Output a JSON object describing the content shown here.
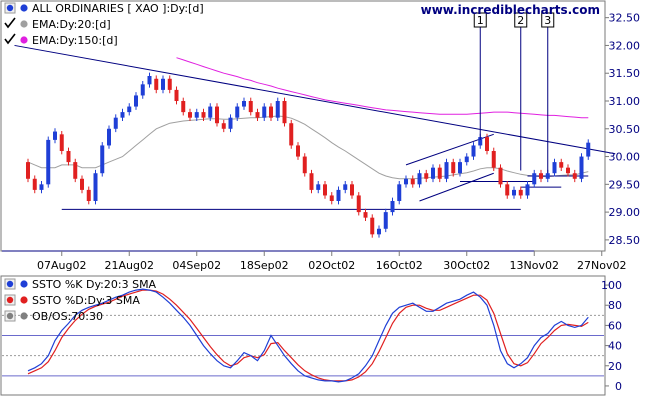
{
  "chart_data": [
    {
      "type": "candlestick",
      "legend": [
        {
          "label": "ALL ORDINARIES [ XAO ]:Dy:[d]",
          "color": "#1f3fd6",
          "marker": "dot"
        },
        {
          "label": "EMA:Dy:20:[d]",
          "color": "#a0a0a0",
          "marker": "check"
        },
        {
          "label": "EMA:Dy:150:[d]",
          "color": "#e020e0",
          "marker": "check"
        }
      ],
      "site": "www.incrediblecharts.com",
      "x_ticks": [
        "07Aug02",
        "21Aug02",
        "04Sep02",
        "18Sep02",
        "02Oct02",
        "16Oct02",
        "30Oct02",
        "13Nov02",
        "27Nov02"
      ],
      "y_ticks": [
        "28.50",
        "29.00",
        "29.50",
        "30.00",
        "30.50",
        "31.00",
        "31.50",
        "32.00",
        "32.50"
      ],
      "ylim": [
        28.3,
        32.8
      ],
      "up_color": "#1f3fd6",
      "down_color": "#e02020",
      "candles": [
        [
          29.9,
          29.6
        ],
        [
          29.6,
          29.4
        ],
        [
          29.4,
          29.5
        ],
        [
          29.5,
          30.3
        ],
        [
          30.3,
          30.45
        ],
        [
          30.4,
          30.1
        ],
        [
          30.1,
          29.9
        ],
        [
          29.9,
          29.6
        ],
        [
          29.6,
          29.4
        ],
        [
          29.4,
          29.2
        ],
        [
          29.2,
          29.7
        ],
        [
          29.7,
          30.2
        ],
        [
          30.2,
          30.5
        ],
        [
          30.5,
          30.7
        ],
        [
          30.7,
          30.8
        ],
        [
          30.8,
          30.9
        ],
        [
          30.9,
          31.1
        ],
        [
          31.1,
          31.3
        ],
        [
          31.3,
          31.45
        ],
        [
          31.4,
          31.2
        ],
        [
          31.2,
          31.4
        ],
        [
          31.4,
          31.2
        ],
        [
          31.2,
          31.0
        ],
        [
          31.0,
          30.8
        ],
        [
          30.8,
          30.7
        ],
        [
          30.7,
          30.8
        ],
        [
          30.8,
          30.7
        ],
        [
          30.7,
          30.9
        ],
        [
          30.9,
          30.6
        ],
        [
          30.6,
          30.5
        ],
        [
          30.5,
          30.7
        ],
        [
          30.7,
          30.9
        ],
        [
          30.9,
          31.0
        ],
        [
          31.0,
          30.8
        ],
        [
          30.8,
          30.7
        ],
        [
          30.7,
          30.9
        ],
        [
          30.9,
          30.7
        ],
        [
          30.7,
          31.0
        ],
        [
          31.0,
          30.6
        ],
        [
          30.6,
          30.2
        ],
        [
          30.2,
          30.0
        ],
        [
          30.0,
          29.7
        ],
        [
          29.7,
          29.4
        ],
        [
          29.4,
          29.5
        ],
        [
          29.5,
          29.3
        ],
        [
          29.3,
          29.2
        ],
        [
          29.2,
          29.4
        ],
        [
          29.4,
          29.5
        ],
        [
          29.5,
          29.3
        ],
        [
          29.3,
          29.0
        ],
        [
          29.0,
          28.9
        ],
        [
          28.9,
          28.6
        ],
        [
          28.6,
          28.7
        ],
        [
          28.7,
          29.0
        ],
        [
          29.0,
          29.2
        ],
        [
          29.2,
          29.5
        ],
        [
          29.5,
          29.6
        ],
        [
          29.6,
          29.5
        ],
        [
          29.5,
          29.7
        ],
        [
          29.7,
          29.6
        ],
        [
          29.6,
          29.8
        ],
        [
          29.8,
          29.6
        ],
        [
          29.6,
          29.9
        ],
        [
          29.9,
          29.7
        ],
        [
          29.7,
          29.9
        ],
        [
          29.9,
          30.0
        ],
        [
          30.0,
          30.2
        ],
        [
          30.2,
          30.35
        ],
        [
          30.35,
          30.1
        ],
        [
          30.1,
          29.8
        ],
        [
          29.8,
          29.5
        ],
        [
          29.5,
          29.3
        ],
        [
          29.3,
          29.4
        ],
        [
          29.4,
          29.3
        ],
        [
          29.3,
          29.5
        ],
        [
          29.5,
          29.7
        ],
        [
          29.7,
          29.6
        ],
        [
          29.6,
          29.7
        ],
        [
          29.7,
          29.9
        ],
        [
          29.9,
          29.8
        ],
        [
          29.8,
          29.7
        ],
        [
          29.7,
          29.6
        ],
        [
          29.6,
          30.0
        ],
        [
          30.0,
          30.25
        ]
      ],
      "ema20": [
        29.9,
        29.85,
        29.8,
        29.8,
        29.8,
        29.85,
        29.85,
        29.85,
        29.8,
        29.8,
        29.8,
        29.85,
        29.9,
        29.95,
        30.0,
        30.1,
        30.2,
        30.3,
        30.4,
        30.5,
        30.55,
        30.6,
        30.62,
        30.64,
        30.65,
        30.66,
        30.67,
        30.68,
        30.68,
        30.67,
        30.67,
        30.68,
        30.69,
        30.7,
        30.7,
        30.71,
        30.72,
        30.73,
        30.72,
        30.69,
        30.64,
        30.58,
        30.5,
        30.42,
        30.34,
        30.25,
        30.17,
        30.1,
        30.02,
        29.94,
        29.86,
        29.78,
        29.7,
        29.65,
        29.62,
        29.6,
        29.6,
        29.6,
        29.61,
        29.62,
        29.63,
        29.64,
        29.65,
        29.67,
        29.69,
        29.71,
        29.74,
        29.78,
        29.8,
        29.8,
        29.78,
        29.74,
        29.71,
        29.68,
        29.66,
        29.65,
        29.64,
        29.64,
        29.65,
        29.66,
        29.67,
        29.67,
        29.7,
        29.73
      ],
      "ema150": [
        null,
        null,
        null,
        null,
        null,
        null,
        null,
        null,
        null,
        null,
        null,
        null,
        null,
        null,
        null,
        null,
        null,
        null,
        null,
        null,
        null,
        null,
        31.78,
        31.74,
        31.7,
        31.66,
        31.62,
        31.58,
        31.54,
        31.5,
        31.47,
        31.44,
        31.4,
        31.37,
        31.33,
        31.3,
        31.27,
        31.23,
        31.2,
        31.17,
        31.14,
        31.11,
        31.08,
        31.05,
        31.02,
        31.0,
        30.98,
        30.96,
        30.94,
        30.92,
        30.9,
        30.88,
        30.86,
        30.84,
        30.83,
        30.82,
        30.81,
        30.8,
        30.79,
        30.78,
        30.77,
        30.76,
        30.76,
        30.76,
        30.76,
        30.76,
        30.77,
        30.78,
        30.79,
        30.8,
        30.8,
        30.8,
        30.79,
        30.78,
        30.77,
        30.76,
        30.75,
        30.74,
        30.74,
        30.73,
        30.72,
        30.71,
        30.7,
        30.7
      ],
      "lines": [
        {
          "p": [
            [
              -2,
              32.0
            ],
            [
              87,
              30.05
            ]
          ],
          "color": "#000080"
        },
        {
          "p": [
            [
              5,
              29.05
            ],
            [
              73,
              29.05
            ]
          ],
          "color": "#000080"
        },
        {
          "p": [
            [
              56,
              29.85
            ],
            [
              69,
              30.4
            ]
          ],
          "color": "#000080"
        },
        {
          "p": [
            [
              58,
              29.2
            ],
            [
              69,
              29.7
            ]
          ],
          "color": "#000080"
        },
        {
          "p": [
            [
              64,
              29.55
            ],
            [
              75,
              29.55
            ]
          ],
          "color": "#000080"
        },
        {
          "p": [
            [
              73,
              29.45
            ],
            [
              79,
              29.45
            ]
          ],
          "color": "#000080"
        },
        {
          "p": [
            [
              74,
              29.65
            ],
            [
              83,
              29.65
            ]
          ],
          "color": "#000080"
        }
      ],
      "markers": [
        {
          "label": "1",
          "i": 67,
          "y": 30.3
        },
        {
          "label": "2",
          "i": 73,
          "y": 29.75
        },
        {
          "label": "3",
          "i": 77,
          "y": 29.7
        }
      ]
    },
    {
      "type": "line",
      "legend": [
        {
          "label": "SSTO %K Dy:20:3 SMA",
          "color": "#1f3fd6",
          "marker": "dot"
        },
        {
          "label": "SSTO %D:Dy:3 SMA",
          "color": "#e02020",
          "marker": "dot"
        },
        {
          "label": "OB/OS:70:30",
          "color": "#808080",
          "marker": "dot"
        }
      ],
      "y_ticks": [
        "0",
        "20",
        "40",
        "60",
        "80",
        "100"
      ],
      "ylim": [
        -8,
        108
      ],
      "ob_os": [
        70,
        30
      ],
      "mid_lines": [
        50,
        10
      ],
      "series": [
        {
          "color": "#1f3fd6",
          "values": [
            15,
            18,
            22,
            30,
            45,
            55,
            62,
            70,
            75,
            78,
            80,
            82,
            85,
            88,
            90,
            93,
            95,
            96,
            95,
            93,
            88,
            82,
            75,
            68,
            60,
            50,
            40,
            32,
            25,
            20,
            18,
            25,
            33,
            30,
            25,
            35,
            50,
            40,
            30,
            22,
            15,
            10,
            8,
            6,
            5,
            5,
            4,
            5,
            8,
            12,
            20,
            30,
            45,
            60,
            72,
            78,
            80,
            82,
            78,
            74,
            74,
            78,
            82,
            84,
            86,
            90,
            93,
            88,
            80,
            60,
            35,
            22,
            18,
            22,
            28,
            40,
            48,
            52,
            60,
            64,
            60,
            58,
            60,
            68
          ]
        },
        {
          "color": "#e02020",
          "values": [
            12,
            15,
            18,
            24,
            35,
            48,
            57,
            65,
            71,
            76,
            79,
            81,
            83,
            86,
            89,
            91,
            93,
            95,
            95,
            94,
            91,
            86,
            80,
            73,
            66,
            57,
            48,
            39,
            31,
            24,
            20,
            22,
            28,
            30,
            28,
            31,
            42,
            43,
            35,
            28,
            21,
            15,
            11,
            8,
            6,
            5,
            5,
            5,
            6,
            9,
            14,
            22,
            34,
            48,
            62,
            72,
            78,
            80,
            80,
            77,
            75,
            75,
            78,
            81,
            84,
            87,
            90,
            90,
            85,
            72,
            52,
            32,
            22,
            20,
            23,
            32,
            42,
            48,
            55,
            60,
            61,
            60,
            59,
            63
          ]
        }
      ]
    }
  ]
}
